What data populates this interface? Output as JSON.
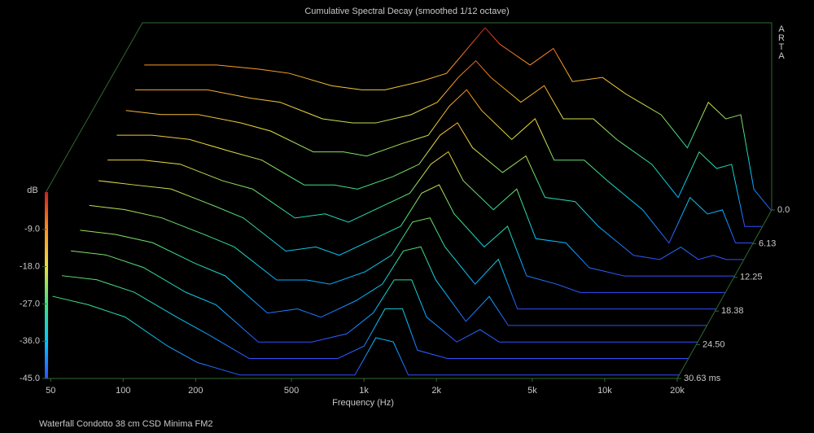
{
  "chart_data": {
    "type": "waterfall",
    "title": "Cumulative Spectral Decay (smoothed 1/12 octave)",
    "x_label": "Frequency (Hz)",
    "y_label": "dB",
    "side_label": "ARTA",
    "footer": "Waterfall Condotto 38 cm CSD Minima FM2",
    "log_x": true,
    "xlim": [
      48,
      20000
    ],
    "xticks": [
      50,
      100,
      200,
      500,
      {
        "value": 1000,
        "label": "1k"
      },
      {
        "value": 2000,
        "label": "2k"
      },
      {
        "value": 5000,
        "label": "5k"
      },
      {
        "value": 10000,
        "label": "10k"
      },
      {
        "value": 20000,
        "label": "20k"
      }
    ],
    "ylim": [
      -45,
      0
    ],
    "yticks": [
      {
        "value": -9,
        "label": "-9.0"
      },
      {
        "value": -18,
        "label": "-18.0"
      },
      {
        "value": -27,
        "label": "-27.0"
      },
      {
        "value": -36,
        "label": "-36.0"
      },
      {
        "value": -45,
        "label": "-45.0"
      }
    ],
    "zlim": [
      0,
      30.63
    ],
    "zticks": [
      {
        "value": 0,
        "label": "0.0"
      },
      6.13,
      12.25,
      18.38,
      {
        "value": 24.5,
        "label": "24.50"
      },
      {
        "value": 30.63,
        "label": "30.63 ms"
      }
    ],
    "colormap": [
      "#3050ff",
      "#00c8ff",
      "#40e080",
      "#e8e040",
      "#ff9020",
      "#c82020"
    ],
    "x": [
      50,
      70,
      100,
      150,
      200,
      300,
      400,
      500,
      700,
      900,
      1100,
      1300,
      1500,
      2000,
      2500,
      3000,
      4000,
      5000,
      7000,
      9000,
      11000,
      13000,
      15000,
      17000,
      20000
    ],
    "z": [
      0,
      3,
      6,
      9,
      12,
      15,
      18,
      21,
      24,
      27,
      30
    ],
    "series": [
      {
        "values": [
          -10,
          -10,
          -10,
          -11,
          -12,
          -15,
          -16,
          -16,
          -14,
          -12,
          -6,
          -1,
          -5,
          -10,
          -6,
          -14,
          -13,
          -17,
          -22,
          -30,
          -19,
          -23,
          -22,
          -40,
          -45
        ]
      },
      {
        "values": [
          -12,
          -12,
          -12,
          -14,
          -15,
          -19,
          -20,
          -20,
          -18,
          -15,
          -9,
          -5,
          -9,
          -15,
          -11,
          -19,
          -19,
          -24,
          -30,
          -38,
          -27,
          -31,
          -30,
          -45,
          -45
        ]
      },
      {
        "values": [
          -13,
          -14,
          -14,
          -16,
          -18,
          -23,
          -23,
          -24,
          -21,
          -19,
          -12,
          -8,
          -13,
          -20,
          -15,
          -25,
          -25,
          -30,
          -37,
          -45,
          -34,
          -38,
          -37,
          -45,
          -45
        ]
      },
      {
        "values": [
          -15,
          -15,
          -16,
          -19,
          -21,
          -27,
          -27,
          -28,
          -25,
          -22,
          -15,
          -12,
          -18,
          -24,
          -20,
          -30,
          -31,
          -37,
          -44,
          -45,
          -42,
          -45,
          -44,
          -45,
          -45
        ]
      },
      {
        "values": [
          -17,
          -17,
          -18,
          -22,
          -24,
          -31,
          -30,
          -32,
          -28,
          -25,
          -18,
          -15,
          -22,
          -29,
          -24,
          -36,
          -37,
          -43,
          -45,
          -45,
          -45,
          -45,
          -45,
          -45,
          -45
        ]
      },
      {
        "values": [
          -18,
          -19,
          -20,
          -24,
          -27,
          -35,
          -34,
          -36,
          -32,
          -29,
          -21,
          -19,
          -26,
          -34,
          -29,
          -41,
          -43,
          -45,
          -45,
          -45,
          -45,
          -45,
          -45,
          -45,
          -45
        ]
      },
      {
        "values": [
          -20,
          -21,
          -23,
          -27,
          -30,
          -38,
          -38,
          -39,
          -36,
          -32,
          -24,
          -23,
          -30,
          -39,
          -33,
          -45,
          -45,
          -45,
          -45,
          -45,
          -45,
          -45,
          -45,
          -45,
          -45
        ]
      },
      {
        "values": [
          -22,
          -23,
          -25,
          -30,
          -33,
          -42,
          -41,
          -43,
          -39,
          -35,
          -27,
          -26,
          -34,
          -44,
          -38,
          -45,
          -45,
          -45,
          -45,
          -45,
          -45,
          -45,
          -45,
          -45,
          -45
        ]
      },
      {
        "values": [
          -23,
          -24,
          -27,
          -33,
          -36,
          -45,
          -45,
          -45,
          -43,
          -38,
          -30,
          -30,
          -39,
          -45,
          -42,
          -45,
          -45,
          -45,
          -45,
          -45,
          -45,
          -45,
          -45,
          -45,
          -45
        ]
      },
      {
        "values": [
          -25,
          -26,
          -29,
          -35,
          -39,
          -45,
          -45,
          -45,
          -45,
          -42,
          -33,
          -33,
          -43,
          -45,
          -45,
          -45,
          -45,
          -45,
          -45,
          -45,
          -45,
          -45,
          -45,
          -45,
          -45
        ]
      },
      {
        "values": [
          -26,
          -28,
          -31,
          -38,
          -42,
          -45,
          -45,
          -45,
          -45,
          -45,
          -36,
          -37,
          -45,
          -45,
          -45,
          -45,
          -45,
          -45,
          -45,
          -45,
          -45,
          -45,
          -45,
          -45,
          -45
        ]
      }
    ]
  }
}
